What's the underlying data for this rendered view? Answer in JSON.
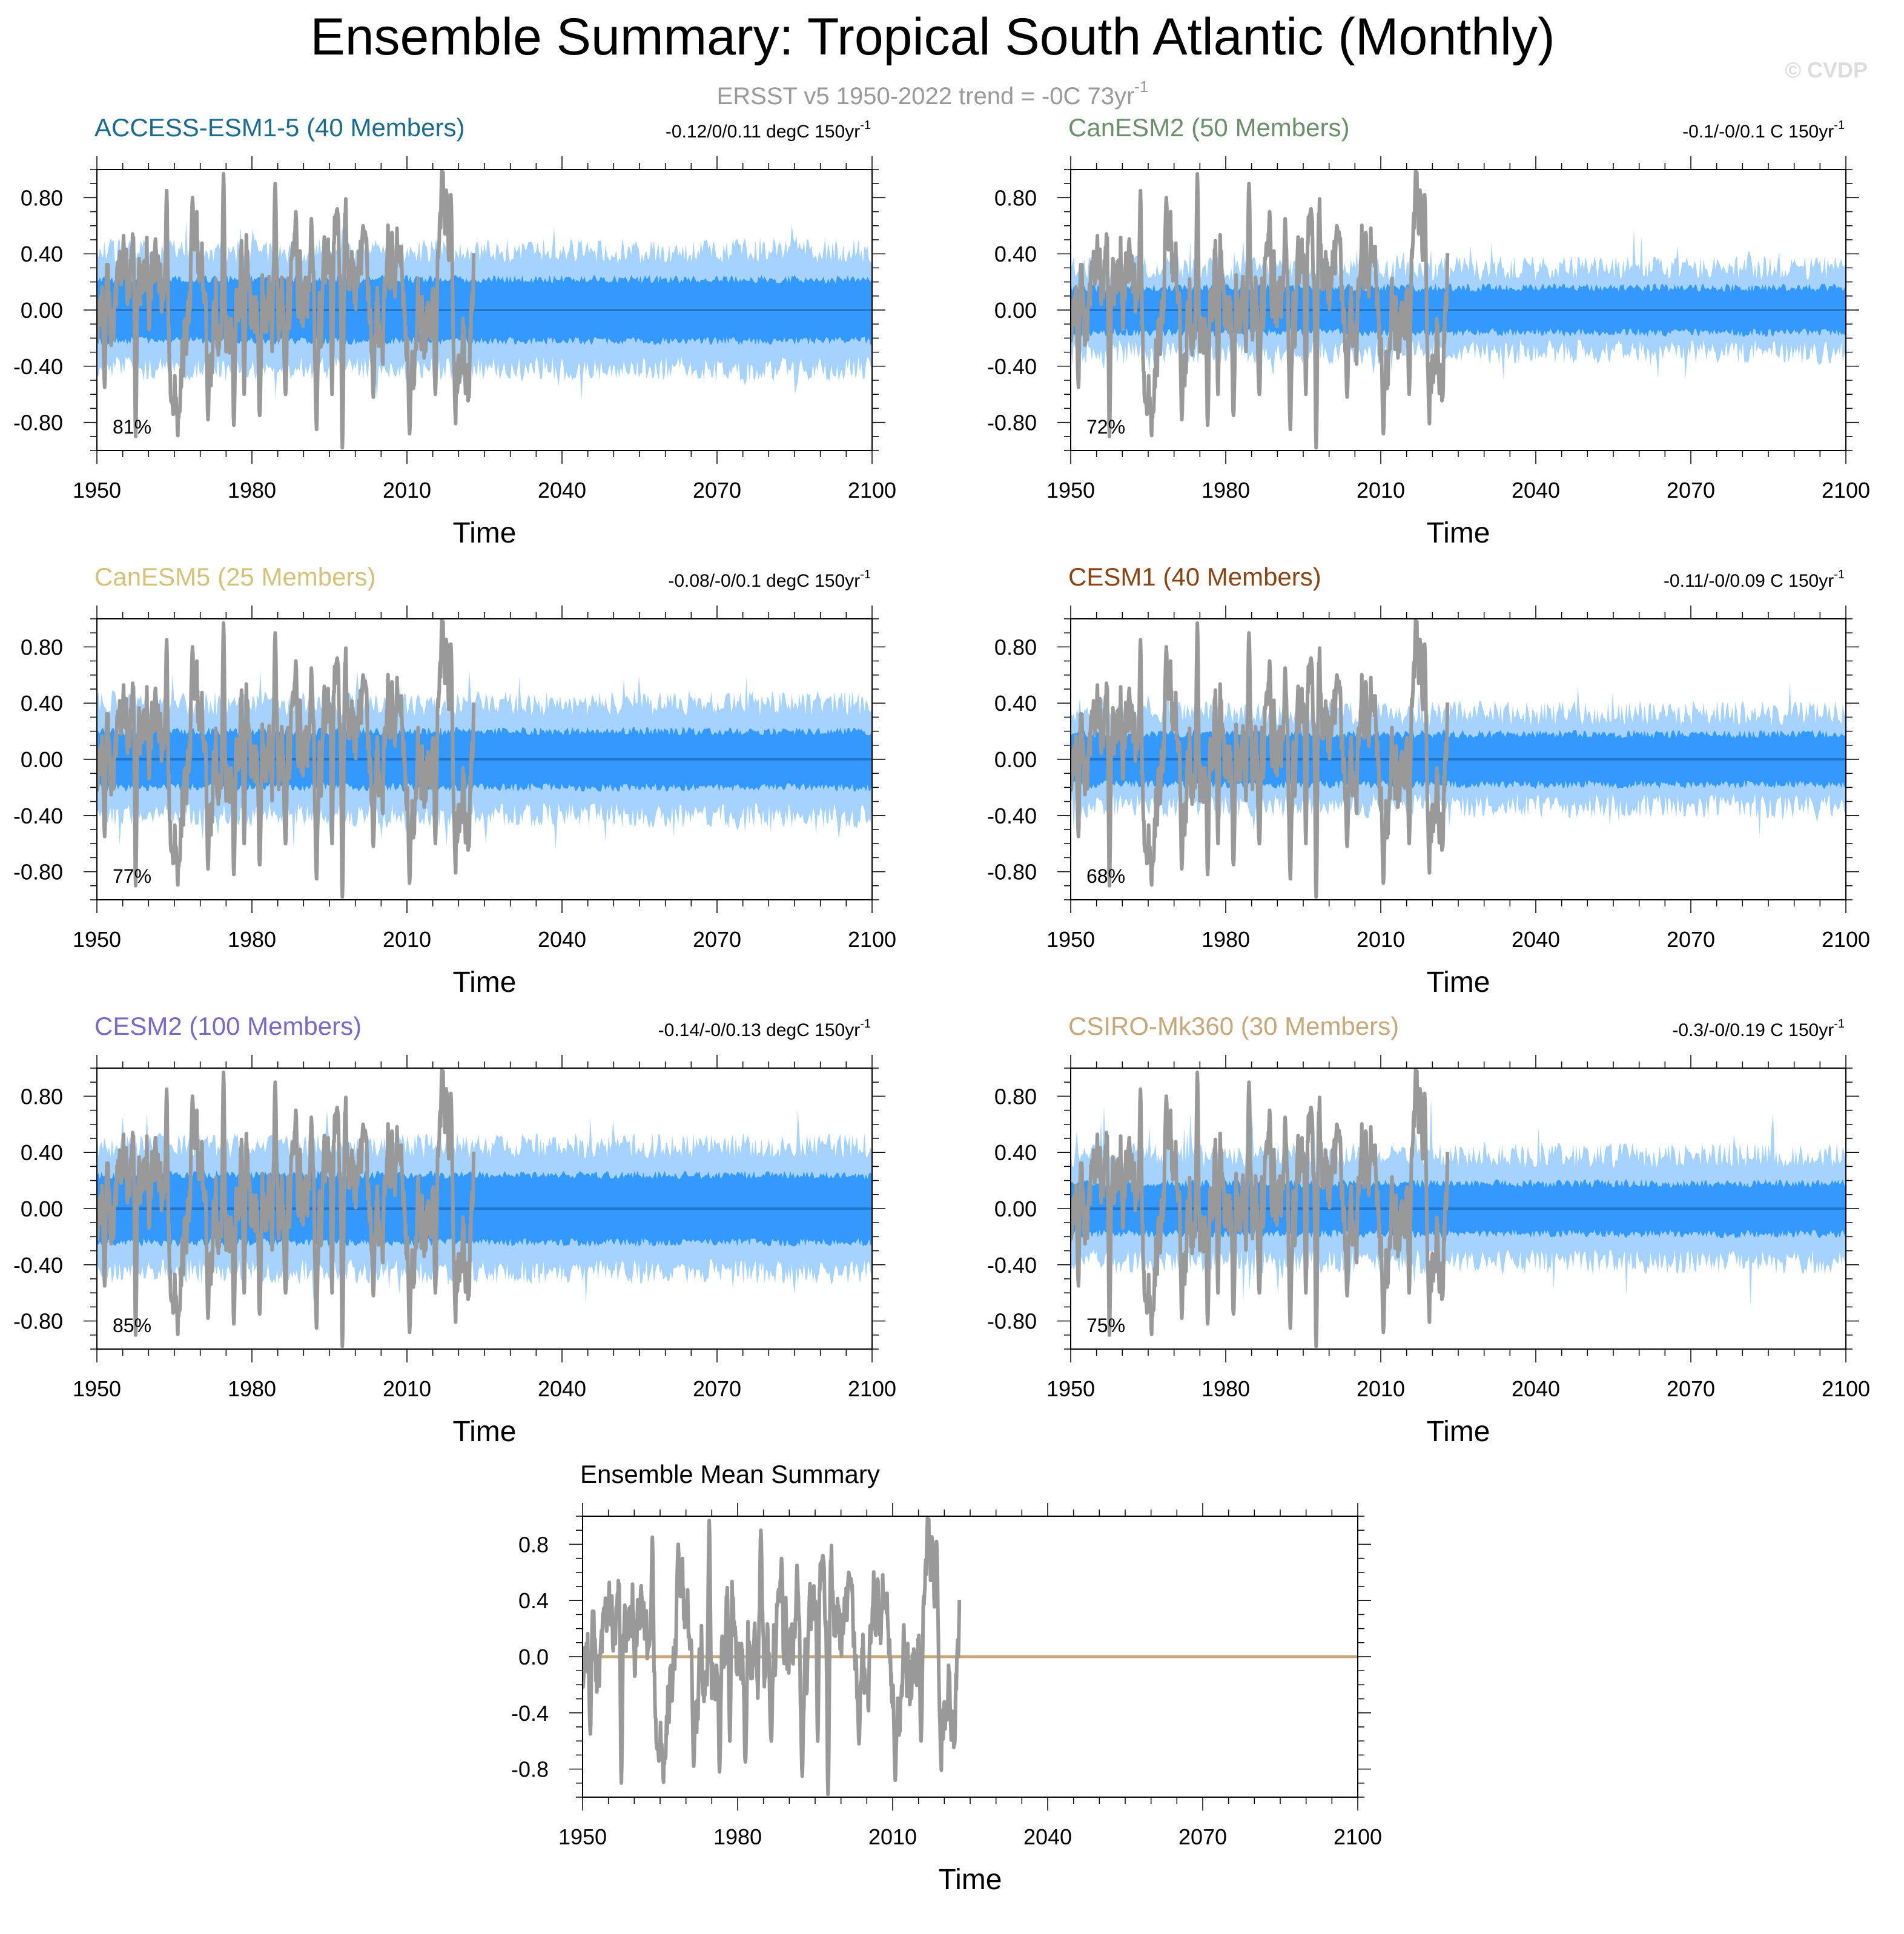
{
  "title": "Ensemble Summary: Tropical South Atlantic (Monthly)",
  "subtitle": "ERSST v5 1950-2022 trend = -0C 73yr",
  "subtitle_sup": "-1",
  "watermark": "© CVDP",
  "colors": {
    "obs": "#999999",
    "spread_outer": "#a6d2ff",
    "spread_inner": "#3399ff",
    "mean_line": "#2277cc",
    "ensemble_mean": "#c8a878"
  },
  "chart_data": [
    {
      "type": "line",
      "title": "ACCESS-ESM1-5 (40 Members)",
      "title_color": "#1a6b8e",
      "trend": "-0.12/0/0.11 degC 150yr",
      "trend_sup": "-1",
      "percent": "81%",
      "xlabel": "Time",
      "xticks": [
        "1950",
        "1980",
        "2010",
        "2040",
        "2070",
        "2100"
      ],
      "yticks": [
        "0.80",
        "0.40",
        "0.00",
        "-0.40",
        "-0.80"
      ],
      "ytick_values": [
        0.8,
        0.4,
        0.0,
        -0.4,
        -0.8
      ],
      "xlim": [
        1950,
        2100
      ],
      "ylim": [
        -1.0,
        1.0
      ],
      "obs_end": 2022,
      "spread": {
        "inner": 0.22,
        "outer": 0.42,
        "outer_peak": 0.62
      }
    },
    {
      "type": "line",
      "title": "CanESM2 (50 Members)",
      "title_color": "#6a8f6a",
      "trend": "-0.1/-0/0.1 C 150yr",
      "trend_sup": "-1",
      "percent": "72%",
      "xlabel": "Time",
      "xticks": [
        "1950",
        "1980",
        "2010",
        "2040",
        "2070",
        "2100"
      ],
      "yticks": [
        "0.80",
        "0.40",
        "0.00",
        "-0.40",
        "-0.80"
      ],
      "ytick_values": [
        0.8,
        0.4,
        0.0,
        -0.4,
        -0.8
      ],
      "xlim": [
        1950,
        2100
      ],
      "ylim": [
        -1.0,
        1.0
      ],
      "obs_end": 2022,
      "spread": {
        "inner": 0.16,
        "outer": 0.3,
        "outer_peak": 0.5
      }
    },
    {
      "type": "line",
      "title": "CanESM5 (25 Members)",
      "title_color": "#d4c27a",
      "trend": "-0.08/-0/0.1 degC 150yr",
      "trend_sup": "-1",
      "percent": "77%",
      "xlabel": "Time",
      "xticks": [
        "1950",
        "1980",
        "2010",
        "2040",
        "2070",
        "2100"
      ],
      "yticks": [
        "0.80",
        "0.40",
        "0.00",
        "-0.40",
        "-0.80"
      ],
      "ytick_values": [
        0.8,
        0.4,
        0.0,
        -0.4,
        -0.8
      ],
      "xlim": [
        1950,
        2100
      ],
      "ylim": [
        -1.0,
        1.0
      ],
      "obs_end": 2022,
      "spread": {
        "inner": 0.2,
        "outer": 0.4,
        "outer_peak": 0.62
      }
    },
    {
      "type": "line",
      "title": "CESM1 (40 Members)",
      "title_color": "#8b4513",
      "trend": "-0.11/-0/0.09 C 150yr",
      "trend_sup": "-1",
      "percent": "68%",
      "xlabel": "Time",
      "xticks": [
        "1950",
        "1980",
        "2010",
        "2040",
        "2070",
        "2100"
      ],
      "yticks": [
        "0.80",
        "0.40",
        "0.00",
        "-0.40",
        "-0.80"
      ],
      "ytick_values": [
        0.8,
        0.4,
        0.0,
        -0.4,
        -0.8
      ],
      "xlim": [
        1950,
        2100
      ],
      "ylim": [
        -1.0,
        1.0
      ],
      "obs_end": 2022,
      "spread": {
        "inner": 0.18,
        "outer": 0.33,
        "outer_peak": 0.5
      }
    },
    {
      "type": "line",
      "title": "CESM2 (100 Members)",
      "title_color": "#7b68c8",
      "trend": "-0.14/-0/0.13 degC 150yr",
      "trend_sup": "-1",
      "percent": "85%",
      "xlabel": "Time",
      "xticks": [
        "1950",
        "1980",
        "2010",
        "2040",
        "2070",
        "2100"
      ],
      "yticks": [
        "0.80",
        "0.40",
        "0.00",
        "-0.40",
        "-0.80"
      ],
      "ytick_values": [
        0.8,
        0.4,
        0.0,
        -0.4,
        -0.8
      ],
      "xlim": [
        1950,
        2100
      ],
      "ylim": [
        -1.0,
        1.0
      ],
      "obs_end": 2022,
      "spread": {
        "inner": 0.24,
        "outer": 0.45,
        "outer_peak": 0.65
      }
    },
    {
      "type": "line",
      "title": "CSIRO-Mk360 (30 Members)",
      "title_color": "#c8a878",
      "trend": "-0.3/-0/0.19 C 150yr",
      "trend_sup": "-1",
      "percent": "75%",
      "xlabel": "Time",
      "xticks": [
        "1950",
        "1980",
        "2010",
        "2040",
        "2070",
        "2100"
      ],
      "yticks": [
        "0.80",
        "0.40",
        "0.00",
        "-0.40",
        "-0.80"
      ],
      "ytick_values": [
        0.8,
        0.4,
        0.0,
        -0.4,
        -0.8
      ],
      "xlim": [
        1950,
        2100
      ],
      "ylim": [
        -1.0,
        1.0
      ],
      "obs_end": 2022,
      "spread": {
        "inner": 0.18,
        "outer": 0.38,
        "outer_peak": 0.72
      }
    },
    {
      "type": "line",
      "title": "Ensemble Mean Summary",
      "title_color": "#000000",
      "trend": "",
      "trend_sup": "",
      "percent": "",
      "xlabel": "Time",
      "xticks": [
        "1950",
        "1980",
        "2010",
        "2040",
        "2070",
        "2100"
      ],
      "yticks": [
        "0.8",
        "0.4",
        "0.0",
        "-0.4",
        "-0.8"
      ],
      "ytick_values": [
        0.8,
        0.4,
        0.0,
        -0.4,
        -0.8
      ],
      "xlim": [
        1950,
        2100
      ],
      "ylim": [
        -1.0,
        1.0
      ],
      "obs_end": 2022,
      "spread": null
    }
  ]
}
